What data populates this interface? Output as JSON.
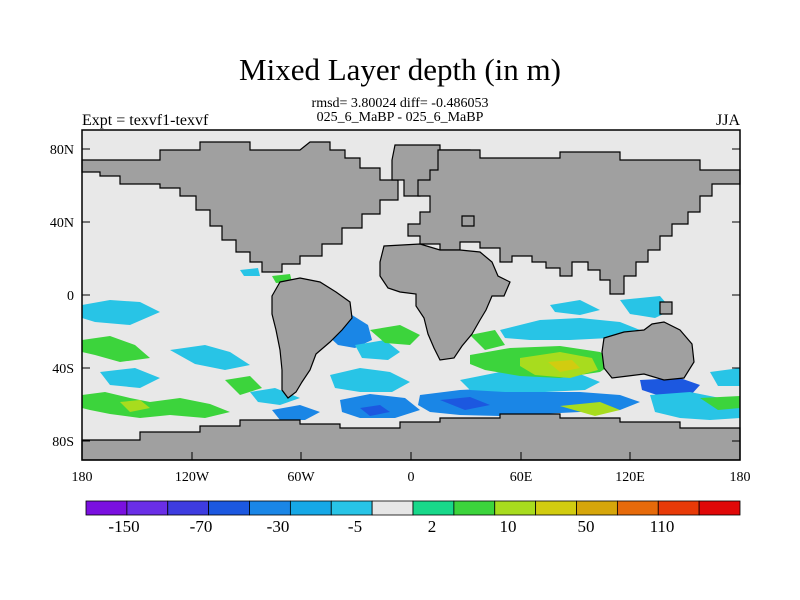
{
  "map": {
    "title": "Mixed Layer depth (in m)",
    "stats_line": "rmsd= 3.80024 diff= -0.486053",
    "comparison_line": "025_6_MaBP - 025_6_MaBP",
    "left_label": "Expt = texvf1-texvf",
    "right_label": "JJA",
    "lat_ticks": [
      "80N",
      "40N",
      "0",
      "40S",
      "80S"
    ],
    "lon_ticks": [
      "180",
      "120W",
      "60W",
      "0",
      "60E",
      "120E",
      "180"
    ],
    "colors": {
      "land": "#a0a0a0",
      "ocean_neutral": "#e8e8e8",
      "frame": "#000000"
    }
  },
  "colorbar": {
    "colors": [
      "#7a10e0",
      "#6a2ee6",
      "#3e3ce0",
      "#1c58e0",
      "#1a86e6",
      "#16a8e6",
      "#28c4e6",
      "#e6e6e6",
      "#18d88a",
      "#3cd43c",
      "#a8dc1e",
      "#d2cc10",
      "#d6a60a",
      "#e66a0a",
      "#e83a08",
      "#e00808"
    ],
    "labels": [
      "-150",
      "-70",
      "-30",
      "-5",
      "2",
      "10",
      "50",
      "110"
    ]
  }
}
